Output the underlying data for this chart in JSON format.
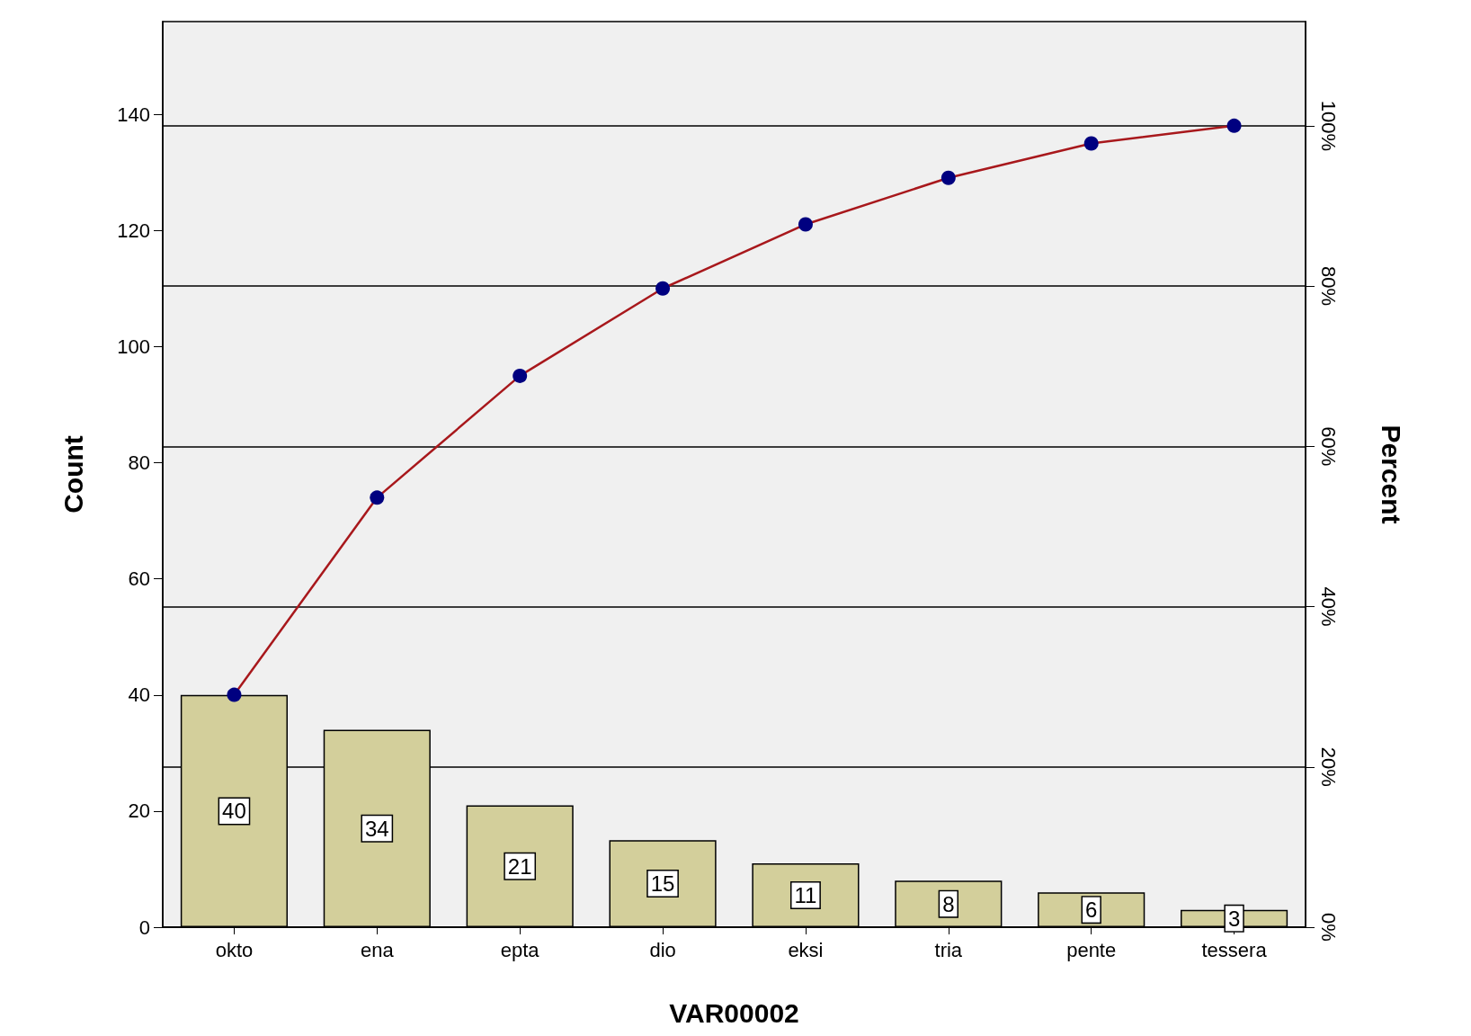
{
  "chart_data": {
    "type": "bar",
    "xlabel": "VAR00002",
    "ylabel": "Count",
    "y2label": "Percent",
    "categories": [
      "okto",
      "ena",
      "epta",
      "dio",
      "eksi",
      "tria",
      "pente",
      "tessera"
    ],
    "series": [
      {
        "color": "#d3cf9b",
        "values": [
          40,
          34,
          21,
          15,
          11,
          8,
          6,
          3
        ],
        "value_labels": [
          "40",
          "34",
          "21",
          "15",
          "11",
          "8",
          "6",
          "3"
        ]
      },
      {
        "type": "line",
        "axis": "y2",
        "color": "#a8181c",
        "colors": [
          "#000080",
          "#000080",
          "#000080",
          "#000080",
          "#000080",
          "#000080",
          "#000080",
          "#000080"
        ],
        "values": [
          29.0,
          53.6,
          68.8,
          79.7,
          87.7,
          93.5,
          97.8,
          100
        ]
      }
    ],
    "marker": "circle",
    "line_style": "solid",
    "ylim": [
      0,
      156
    ],
    "yticks": [
      0,
      20,
      40,
      60,
      80,
      100,
      120,
      140
    ],
    "y2lim": [
      0,
      113
    ],
    "y2ticks": [
      {
        "value": 0,
        "label": "0%"
      },
      {
        "value": 20,
        "label": "20%"
      },
      {
        "value": 40,
        "label": "40%"
      },
      {
        "value": 60,
        "label": "60%"
      },
      {
        "value": 80,
        "label": "80%"
      },
      {
        "value": 100,
        "label": "100%"
      }
    ],
    "grid": "y2"
  }
}
